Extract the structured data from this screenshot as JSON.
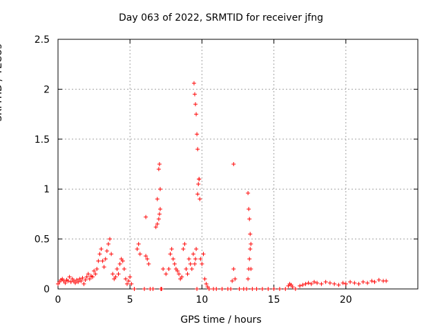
{
  "chart_data": {
    "type": "scatter",
    "title": "Day 063 of 2022, SRMTID for receiver jfng",
    "xlabel": "GPS time / hours",
    "ylabel": "SRMTID / TECUs",
    "xlim": [
      0,
      25
    ],
    "ylim": [
      0,
      2.5
    ],
    "xticks": [
      0,
      5,
      10,
      15,
      20
    ],
    "xtick_labels": [
      "0",
      "5",
      "10",
      "15",
      "20"
    ],
    "yticks": [
      0,
      0.5,
      1,
      1.5,
      2,
      2.5
    ],
    "ytick_labels": [
      "0",
      "0.5",
      "1",
      "1.5",
      "2",
      "2.5"
    ],
    "grid": true,
    "marker": "+",
    "marker_color": "#ff0000",
    "series": [
      {
        "name": "SRMTID",
        "x": [
          0.0,
          0.1,
          0.2,
          0.3,
          0.4,
          0.5,
          0.6,
          0.7,
          0.8,
          0.9,
          1.0,
          1.1,
          1.2,
          1.3,
          1.4,
          1.5,
          1.6,
          1.7,
          1.8,
          1.9,
          2.0,
          2.1,
          2.2,
          2.3,
          2.4,
          2.5,
          2.6,
          2.7,
          2.8,
          2.9,
          3.0,
          3.1,
          3.2,
          3.3,
          3.4,
          3.5,
          3.6,
          3.7,
          3.8,
          3.9,
          4.0,
          4.1,
          4.2,
          4.3,
          4.4,
          4.5,
          4.6,
          4.7,
          4.8,
          4.9,
          5.0,
          5.1,
          5.3,
          5.5,
          5.6,
          5.7,
          6.0,
          6.1,
          6.2,
          6.3,
          6.4,
          6.6,
          6.8,
          6.9,
          7.0,
          7.05,
          7.1,
          7.15,
          7.2,
          7.3,
          7.5,
          7.7,
          7.8,
          7.9,
          8.0,
          8.1,
          8.2,
          8.3,
          8.4,
          8.5,
          8.6,
          8.7,
          8.8,
          8.9,
          9.0,
          9.1,
          9.2,
          9.3,
          9.4,
          9.5,
          9.55,
          9.6,
          9.65,
          9.7,
          9.75,
          9.8,
          9.9,
          10.0,
          10.1,
          10.2,
          10.3,
          10.4,
          10.5,
          10.8,
          11.0,
          11.4,
          11.8,
          12.0,
          12.1,
          12.2,
          12.3,
          12.6,
          12.9,
          13.1,
          13.2,
          13.25,
          13.3,
          13.35,
          13.4,
          13.5,
          13.8,
          14.2,
          14.6,
          15.0,
          15.4,
          15.8,
          16.0,
          16.1,
          16.2,
          16.3,
          16.5,
          16.8,
          17.0,
          17.2,
          17.4,
          17.6,
          17.8,
          18.0,
          18.3,
          18.6,
          18.9,
          19.2,
          19.5,
          19.8,
          20.0,
          20.3,
          20.6,
          20.9,
          21.2,
          21.5,
          21.8,
          22.0,
          22.3,
          22.6,
          22.8,
          6.1,
          6.9,
          7.0,
          7.05,
          7.1,
          9.45,
          9.5,
          9.55,
          9.6,
          9.65,
          9.7,
          9.8,
          9.85,
          12.2,
          13.2,
          13.25,
          13.3,
          13.35,
          13.4
        ],
        "y": [
          0.05,
          0.07,
          0.09,
          0.1,
          0.08,
          0.06,
          0.09,
          0.08,
          0.12,
          0.07,
          0.1,
          0.08,
          0.06,
          0.09,
          0.07,
          0.1,
          0.08,
          0.11,
          0.05,
          0.09,
          0.12,
          0.15,
          0.1,
          0.13,
          0.12,
          0.18,
          0.15,
          0.2,
          0.28,
          0.35,
          0.4,
          0.28,
          0.22,
          0.3,
          0.38,
          0.45,
          0.5,
          0.35,
          0.15,
          0.1,
          0.12,
          0.2,
          0.15,
          0.25,
          0.3,
          0.28,
          0.2,
          0.1,
          0.05,
          0.08,
          0.12,
          0.05,
          0.0,
          0.4,
          0.45,
          0.35,
          0.0,
          0.33,
          0.3,
          0.25,
          0.0,
          0.0,
          0.62,
          0.65,
          0.7,
          0.75,
          0.8,
          0.0,
          0.0,
          0.2,
          0.15,
          0.2,
          0.35,
          0.4,
          0.3,
          0.25,
          0.2,
          0.18,
          0.15,
          0.1,
          0.12,
          0.4,
          0.45,
          0.2,
          0.15,
          0.3,
          0.25,
          0.2,
          0.35,
          0.25,
          0.3,
          0.4,
          0.0,
          0.95,
          1.05,
          1.1,
          0.3,
          0.25,
          0.35,
          0.1,
          0.05,
          0.02,
          0.0,
          0.0,
          0.0,
          0.0,
          0.0,
          0.0,
          0.08,
          0.2,
          0.1,
          0.0,
          0.0,
          0.0,
          0.1,
          0.2,
          0.3,
          0.4,
          0.2,
          0.0,
          0.0,
          0.0,
          0.0,
          0.0,
          0.0,
          0.0,
          0.03,
          0.05,
          0.04,
          0.02,
          0.0,
          0.03,
          0.04,
          0.05,
          0.06,
          0.05,
          0.07,
          0.06,
          0.05,
          0.07,
          0.06,
          0.05,
          0.04,
          0.06,
          0.05,
          0.07,
          0.06,
          0.05,
          0.07,
          0.06,
          0.08,
          0.07,
          0.09,
          0.08,
          0.08,
          0.72,
          0.9,
          1.2,
          1.25,
          1.0,
          2.06,
          1.95,
          1.85,
          1.75,
          1.55,
          1.4,
          1.1,
          0.9,
          1.25,
          0.96,
          0.8,
          0.7,
          0.55,
          0.45
        ]
      }
    ]
  }
}
